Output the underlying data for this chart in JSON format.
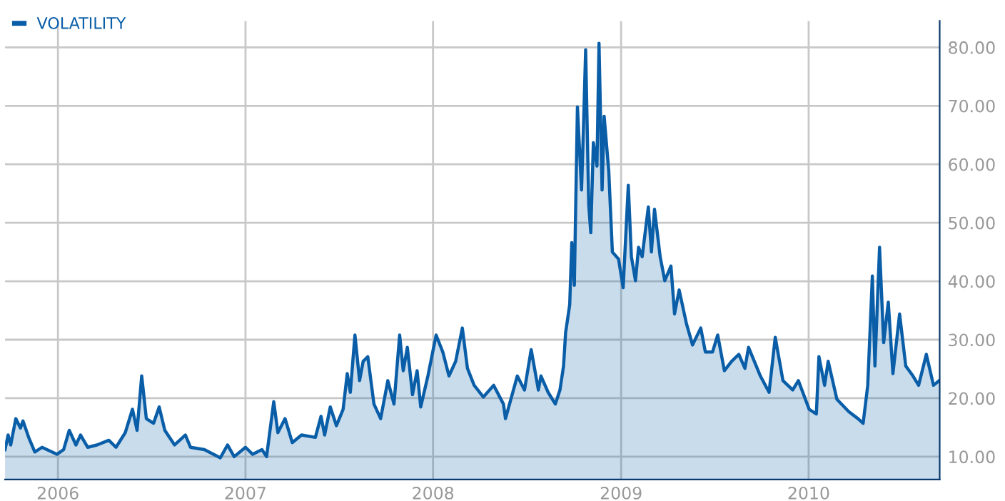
{
  "chart_data": {
    "type": "area",
    "x": [
      "2005-09-20",
      "2005-09-26",
      "2005-10-01",
      "2005-10-11",
      "2005-10-20",
      "2005-10-25",
      "2005-11-05",
      "2005-11-17",
      "2005-12-01",
      "2005-12-30",
      "2006-01-12",
      "2006-01-23",
      "2006-02-05",
      "2006-02-14",
      "2006-02-28",
      "2006-03-18",
      "2006-04-10",
      "2006-04-24",
      "2006-05-12",
      "2006-05-26",
      "2006-06-04",
      "2006-06-13",
      "2006-06-22",
      "2006-07-06",
      "2006-07-17",
      "2006-07-28",
      "2006-08-16",
      "2006-09-06",
      "2006-09-16",
      "2006-10-13",
      "2006-11-13",
      "2006-11-27",
      "2006-12-10",
      "2007-01-01",
      "2007-01-15",
      "2007-02-02",
      "2007-02-11",
      "2007-02-25",
      "2007-03-05",
      "2007-03-19",
      "2007-04-02",
      "2007-04-20",
      "2007-05-17",
      "2007-05-28",
      "2007-06-04",
      "2007-06-15",
      "2007-06-27",
      "2007-07-10",
      "2007-07-18",
      "2007-07-24",
      "2007-08-02",
      "2007-08-11",
      "2007-08-18",
      "2007-08-27",
      "2007-09-08",
      "2007-09-21",
      "2007-10-05",
      "2007-10-17",
      "2007-10-28",
      "2007-11-04",
      "2007-11-12",
      "2007-11-22",
      "2007-12-01",
      "2007-12-08",
      "2007-12-22",
      "2008-01-07",
      "2008-01-20",
      "2008-02-01",
      "2008-02-14",
      "2008-02-27",
      "2008-03-08",
      "2008-03-21",
      "2008-04-08",
      "2008-04-28",
      "2008-05-17",
      "2008-05-21",
      "2008-06-13",
      "2008-06-27",
      "2008-07-10",
      "2008-07-24",
      "2008-07-29",
      "2008-08-12",
      "2008-08-26",
      "2008-09-04",
      "2008-09-11",
      "2008-09-15",
      "2008-09-23",
      "2008-09-27",
      "2008-10-02",
      "2008-10-08",
      "2008-10-16",
      "2008-10-20",
      "2008-10-24",
      "2008-10-30",
      "2008-11-03",
      "2008-11-08",
      "2008-11-15",
      "2008-11-19",
      "2008-11-25",
      "2008-11-29",
      "2008-12-08",
      "2008-12-15",
      "2008-12-27",
      "2009-01-05",
      "2009-01-15",
      "2009-01-21",
      "2009-01-29",
      "2009-02-04",
      "2009-02-11",
      "2009-02-23",
      "2009-03-01",
      "2009-03-07",
      "2009-03-18",
      "2009-03-27",
      "2009-04-08",
      "2009-04-15",
      "2009-04-24",
      "2009-05-08",
      "2009-05-20",
      "2009-06-05",
      "2009-06-14",
      "2009-06-28",
      "2009-07-08",
      "2009-07-21",
      "2009-08-04",
      "2009-08-18",
      "2009-08-30",
      "2009-09-06",
      "2009-09-29",
      "2009-10-16",
      "2009-10-28",
      "2009-11-12",
      "2009-12-01",
      "2009-12-12",
      "2010-01-02",
      "2010-01-16",
      "2010-01-21",
      "2010-02-01",
      "2010-02-08",
      "2010-02-25",
      "2010-03-20",
      "2010-04-07",
      "2010-04-17",
      "2010-04-26",
      "2010-05-05",
      "2010-05-10",
      "2010-05-19",
      "2010-05-27",
      "2010-06-05",
      "2010-06-14",
      "2010-06-27",
      "2010-07-09",
      "2010-07-23",
      "2010-08-03",
      "2010-08-18",
      "2010-09-01",
      "2010-09-12"
    ],
    "series": [
      {
        "name": "VOLATILITY",
        "color": "#0a5ea8",
        "values": [
          11.2,
          13.7,
          12,
          16.5,
          14.9,
          16.1,
          13.3,
          10.8,
          11.6,
          10.4,
          11.2,
          14.5,
          12,
          13.7,
          11.6,
          12,
          12.8,
          11.6,
          14.1,
          18.1,
          14.5,
          23.8,
          16.5,
          15.7,
          18.5,
          14.5,
          12,
          13.7,
          11.6,
          11.2,
          9.8,
          12,
          10,
          11.6,
          10.4,
          11.2,
          10,
          19.4,
          14.1,
          16.5,
          12.4,
          13.7,
          13.3,
          16.9,
          13.7,
          18.5,
          15.3,
          18.1,
          24.2,
          21,
          30.8,
          23,
          26.3,
          27.1,
          19,
          16.5,
          23,
          19,
          30.8,
          24.7,
          28.7,
          20.6,
          24.7,
          18.5,
          23.8,
          30.8,
          27.9,
          23.8,
          26.3,
          32,
          25.1,
          22.2,
          20.2,
          22.2,
          19,
          16.5,
          23.8,
          21.4,
          28.3,
          21.4,
          23.8,
          21,
          19,
          21.4,
          25.5,
          31.2,
          36,
          46.6,
          39.3,
          69.8,
          55.6,
          67,
          79.6,
          53.1,
          48.3,
          63.7,
          59.7,
          80.7,
          55.6,
          68.2,
          58.8,
          45,
          43.8,
          38.9,
          56.4,
          44.2,
          40.1,
          45.8,
          44.2,
          52.7,
          45,
          52.3,
          44.2,
          40.1,
          42.6,
          34.4,
          38.5,
          32.8,
          29.1,
          32,
          27.9,
          27.9,
          30.8,
          24.7,
          26.3,
          27.5,
          25.1,
          28.7,
          23.8,
          21,
          30.4,
          23,
          21.4,
          23,
          18.1,
          17.3,
          27.1,
          22.2,
          26.3,
          19.8,
          17.7,
          16.5,
          15.7,
          22.2,
          40.9,
          25.5,
          45.8,
          29.5,
          36.4,
          24.2,
          34.4,
          25.5,
          23.8,
          22.2,
          27.5,
          22.2,
          23
        ]
      }
    ],
    "xlim": [
      "2005-09-20",
      "2010-09-13"
    ],
    "xticks": [
      "2006",
      "2007",
      "2008",
      "2009",
      "2010"
    ],
    "ylim": [
      6.1,
      84.5
    ],
    "yticks": [
      {
        "value": 10,
        "label": "10.00"
      },
      {
        "value": 20,
        "label": "20.00"
      },
      {
        "value": 30,
        "label": "30.00"
      },
      {
        "value": 40,
        "label": "40.00"
      },
      {
        "value": 50,
        "label": "50.00"
      },
      {
        "value": 60,
        "label": "60.00"
      },
      {
        "value": 70,
        "label": "70.00"
      },
      {
        "value": 80,
        "label": "80.00"
      }
    ],
    "grid": true,
    "legend": "top left"
  }
}
